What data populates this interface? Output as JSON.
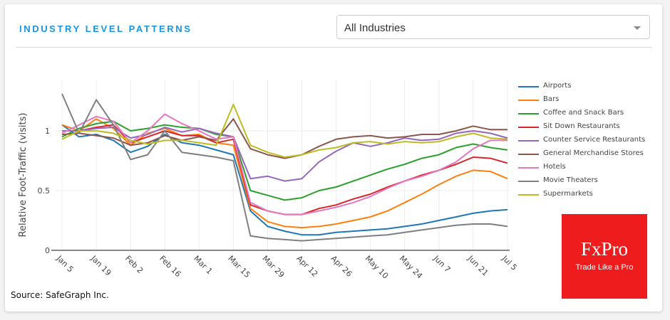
{
  "header": {
    "title": "INDUSTRY LEVEL PATTERNS",
    "industry_select": {
      "value": "All Industries"
    }
  },
  "source": "Source: SafeGraph Inc.",
  "logo": {
    "brand": "FxPro",
    "tagline": "Trade Like a Pro",
    "color": "#ee1c1c"
  },
  "chart_data": {
    "type": "line",
    "title": "",
    "xlabel": "",
    "ylabel": "Relative Foot-Traffic (visits)",
    "ylim": [
      0,
      1.35
    ],
    "yticks": [
      0,
      0.5,
      1
    ],
    "ytick_labels": [
      "0",
      "0.5",
      "1"
    ],
    "xtick_labels": [
      "Jan  5",
      "Jan 19",
      "Feb  2",
      "Feb 16",
      "Mar  1",
      "Mar 15",
      "Mar 29",
      "Apr 12",
      "Apr 26",
      "May 10",
      "May 24",
      "Jun  7",
      "Jun 21",
      "Jul  5"
    ],
    "grid": true,
    "legend_position": "right",
    "x": [
      "Jan 5",
      "Jan 12",
      "Jan 19",
      "Jan 26",
      "Feb 2",
      "Feb 9",
      "Feb 16",
      "Feb 23",
      "Mar 1",
      "Mar 8",
      "Mar 15",
      "Mar 22",
      "Mar 29",
      "Apr 5",
      "Apr 12",
      "Apr 19",
      "Apr 26",
      "May 3",
      "May 10",
      "May 17",
      "May 24",
      "May 31",
      "Jun 7",
      "Jun 14",
      "Jun 21",
      "Jun 28",
      "Jul 5"
    ],
    "series": [
      {
        "name": "Airports",
        "color": "#1f77b4",
        "values": [
          1.05,
          0.95,
          0.97,
          0.92,
          0.82,
          0.87,
          0.97,
          0.9,
          0.88,
          0.84,
          0.8,
          0.33,
          0.2,
          0.16,
          0.13,
          0.13,
          0.15,
          0.16,
          0.17,
          0.18,
          0.2,
          0.22,
          0.25,
          0.28,
          0.31,
          0.33,
          0.34
        ]
      },
      {
        "name": "Bars",
        "color": "#ff7f0e",
        "values": [
          1.05,
          1.0,
          1.1,
          1.02,
          0.88,
          0.98,
          1.02,
          0.96,
          0.97,
          0.9,
          0.88,
          0.35,
          0.24,
          0.2,
          0.19,
          0.2,
          0.22,
          0.25,
          0.28,
          0.33,
          0.4,
          0.47,
          0.55,
          0.62,
          0.67,
          0.66,
          0.6
        ]
      },
      {
        "name": "Coffee and Snack Bars",
        "color": "#2ca02c",
        "values": [
          0.95,
          1.02,
          1.06,
          1.08,
          1.0,
          1.02,
          1.05,
          1.03,
          1.02,
          0.97,
          0.95,
          0.5,
          0.46,
          0.42,
          0.44,
          0.5,
          0.53,
          0.58,
          0.63,
          0.68,
          0.72,
          0.77,
          0.8,
          0.86,
          0.89,
          0.86,
          0.84
        ]
      },
      {
        "name": "Sit Down Restaurants",
        "color": "#d62728",
        "values": [
          1.0,
          1.0,
          1.03,
          1.05,
          0.9,
          0.95,
          1.0,
          0.96,
          0.96,
          0.9,
          0.93,
          0.38,
          0.33,
          0.3,
          0.3,
          0.35,
          0.38,
          0.43,
          0.47,
          0.53,
          0.58,
          0.63,
          0.67,
          0.72,
          0.78,
          0.77,
          0.73
        ]
      },
      {
        "name": "Counter Service Restaurants",
        "color": "#9467bd",
        "values": [
          1.0,
          1.0,
          1.02,
          1.03,
          0.94,
          0.97,
          1.03,
          0.99,
          1.02,
          0.98,
          0.95,
          0.6,
          0.62,
          0.58,
          0.6,
          0.74,
          0.83,
          0.9,
          0.87,
          0.9,
          0.94,
          0.92,
          0.93,
          0.98,
          1.0,
          0.98,
          0.94
        ]
      },
      {
        "name": "General Merchandise Stores",
        "color": "#8c564b",
        "values": [
          0.97,
          0.98,
          0.96,
          0.94,
          0.88,
          0.9,
          0.96,
          0.92,
          0.95,
          0.92,
          1.1,
          0.85,
          0.8,
          0.77,
          0.8,
          0.87,
          0.93,
          0.95,
          0.96,
          0.94,
          0.95,
          0.97,
          0.97,
          1.0,
          1.04,
          1.01,
          1.01
        ]
      },
      {
        "name": "Hotels",
        "color": "#e377c2",
        "values": [
          0.98,
          1.05,
          1.12,
          1.08,
          0.9,
          1.0,
          1.14,
          1.06,
          1.0,
          0.93,
          0.95,
          0.4,
          0.33,
          0.3,
          0.3,
          0.33,
          0.36,
          0.4,
          0.45,
          0.52,
          0.58,
          0.62,
          0.67,
          0.74,
          0.85,
          0.92,
          0.92
        ]
      },
      {
        "name": "Movie Theaters",
        "color": "#7f7f7f",
        "values": [
          1.31,
          0.98,
          1.26,
          1.05,
          0.76,
          0.8,
          1.0,
          0.82,
          0.8,
          0.78,
          0.75,
          0.12,
          0.1,
          0.09,
          0.08,
          0.09,
          0.1,
          0.11,
          0.12,
          0.13,
          0.15,
          0.17,
          0.19,
          0.21,
          0.22,
          0.22,
          0.2
        ]
      },
      {
        "name": "Supermarkets",
        "color": "#bcbd22",
        "values": [
          0.93,
          1.0,
          1.0,
          0.98,
          0.92,
          0.89,
          0.92,
          0.92,
          0.9,
          0.88,
          1.22,
          0.88,
          0.82,
          0.78,
          0.8,
          0.84,
          0.86,
          0.9,
          0.91,
          0.89,
          0.91,
          0.9,
          0.91,
          0.95,
          0.98,
          0.94,
          0.93
        ]
      }
    ]
  }
}
